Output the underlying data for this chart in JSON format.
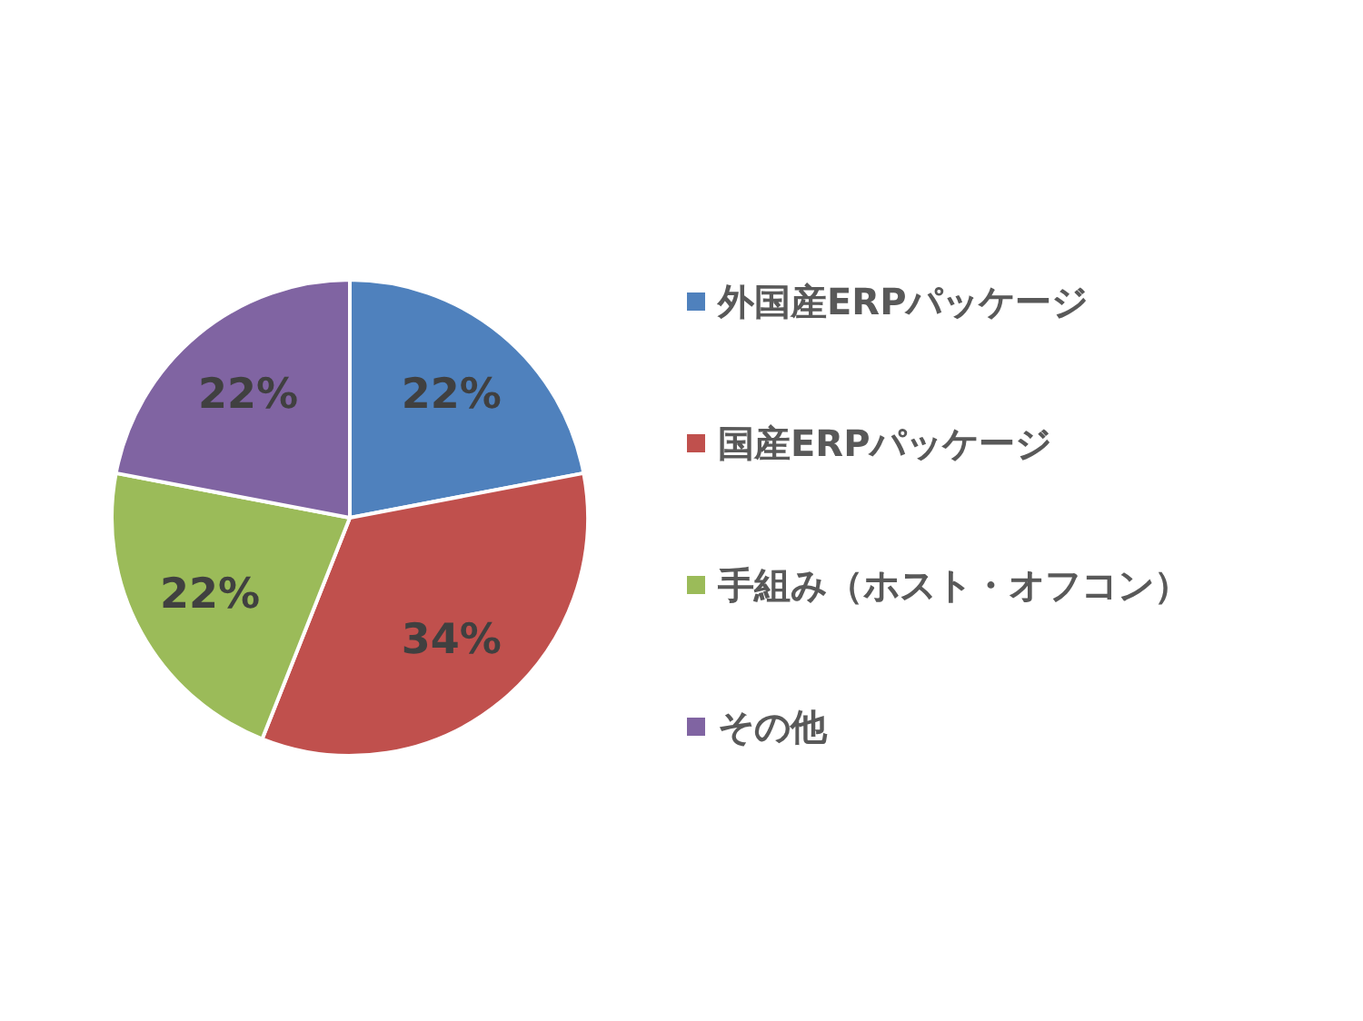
{
  "chart_data": {
    "type": "pie",
    "categories": [
      "外国産ERPパッケージ",
      "国産ERPパッケージ",
      "手組み（ホスト・オフコン）",
      "その他"
    ],
    "values": [
      22,
      34,
      22,
      22
    ],
    "value_labels": [
      "22%",
      "34%",
      "22%",
      "22%"
    ],
    "colors": [
      "#4f81bd",
      "#c0504d",
      "#9bbb59",
      "#8064a2"
    ],
    "legend": "right"
  }
}
